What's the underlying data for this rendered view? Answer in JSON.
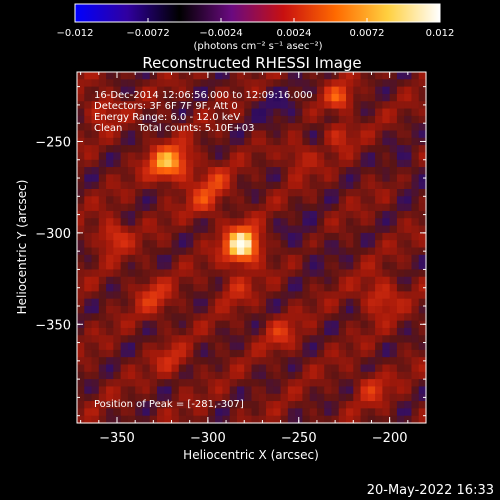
{
  "chart_data": {
    "type": "heatmap",
    "title": "Reconstructed RHESSI Image",
    "colorbar": {
      "min": -0.012,
      "max": 0.012,
      "ticks": [
        "-0.012",
        "-0.0072",
        "-0.0024",
        "0.0024",
        "0.0072",
        "0.012"
      ],
      "label": "(photons cm⁻² s⁻¹ asec⁻²)",
      "colormap": [
        "#0000ff",
        "#3000a0",
        "#000000",
        "#6a0a80",
        "#c81010",
        "#ff6a00",
        "#ffd040",
        "#ffffff"
      ]
    },
    "annotations": {
      "line1": "16-Dec-2014 12:06:56.000 to 12:09:16.000",
      "line2": "Detectors: 3F 6F 7F 9F, Att 0",
      "line3": "Energy Range: 6.0 - 12.0 keV",
      "line4": "Clean     Total counts: 5.10E+03",
      "peak": "Position of Peak = [-281,-307]"
    },
    "xlabel": "Heliocentric X (arcsec)",
    "ylabel": "Heliocentric Y (arcsec)",
    "xlim": [
      -372,
      -180
    ],
    "ylim": [
      -404,
      -212
    ],
    "xticks": [
      {
        "value": -350,
        "label": "−350"
      },
      {
        "value": -300,
        "label": "−300"
      },
      {
        "value": -250,
        "label": "−250"
      },
      {
        "value": -200,
        "label": "−200"
      }
    ],
    "yticks": [
      {
        "value": -250,
        "label": "−250"
      },
      {
        "value": -300,
        "label": "−300"
      },
      {
        "value": -350,
        "label": "−350"
      }
    ],
    "peak": {
      "x": -281,
      "y": -307,
      "value": 0.012
    },
    "blobs": [
      {
        "x": -318,
        "y": -262,
        "amp": 0.0055,
        "sigma": 7
      },
      {
        "x": -326,
        "y": -262,
        "amp": 0.004,
        "sigma": 6
      },
      {
        "x": -302,
        "y": -283,
        "amp": 0.0035,
        "sigma": 6
      },
      {
        "x": -295,
        "y": -272,
        "amp": 0.003,
        "sigma": 6
      },
      {
        "x": -228,
        "y": -226,
        "amp": 0.005,
        "sigma": 5
      },
      {
        "x": -228,
        "y": -246,
        "amp": 0.003,
        "sigma": 5
      },
      {
        "x": -352,
        "y": -302,
        "amp": 0.004,
        "sigma": 6
      },
      {
        "x": -260,
        "y": -355,
        "amp": 0.003,
        "sigma": 6
      },
      {
        "x": -205,
        "y": -335,
        "amp": 0.0035,
        "sigma": 7
      },
      {
        "x": -330,
        "y": -335,
        "amp": 0.003,
        "sigma": 7
      },
      {
        "x": -250,
        "y": -258,
        "amp": 0.0028,
        "sigma": 6
      },
      {
        "x": -358,
        "y": -232,
        "amp": 0.0028,
        "sigma": 6
      },
      {
        "x": -320,
        "y": -370,
        "amp": 0.0025,
        "sigma": 6
      },
      {
        "x": -210,
        "y": -385,
        "amp": 0.003,
        "sigma": 6
      },
      {
        "x": -285,
        "y": -330,
        "amp": 0.0025,
        "sigma": 6
      },
      {
        "x": -245,
        "y": -305,
        "amp": -0.0012,
        "sigma": 10
      },
      {
        "x": -260,
        "y": -235,
        "amp": -0.0015,
        "sigma": 10
      },
      {
        "x": -190,
        "y": -265,
        "amp": -0.0015,
        "sigma": 8
      }
    ],
    "grid": false
  },
  "timestamp": "20-May-2022 16:33"
}
